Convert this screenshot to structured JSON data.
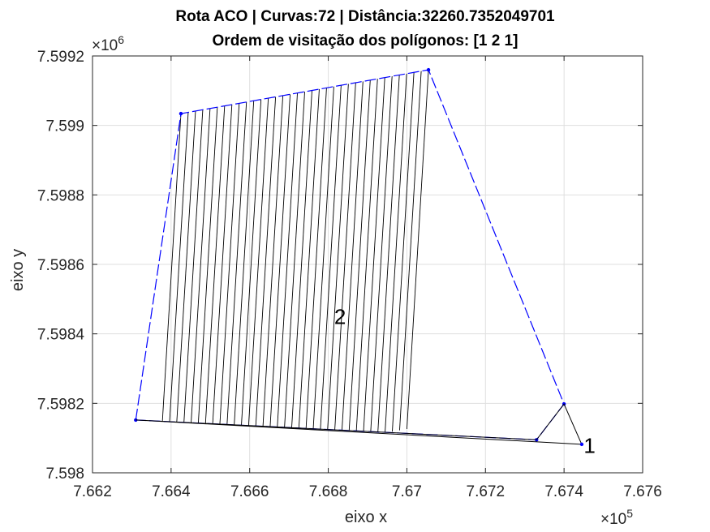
{
  "chart_data": {
    "type": "line",
    "title": [
      "Rota ACO | Curvas:72 | Distância:32260.7352049701",
      "Ordem de visitação dos polígonos: [1 2 1]"
    ],
    "xlabel": "eixo x",
    "ylabel": "eixo y",
    "xlim": [
      766200,
      767600
    ],
    "ylim": [
      7598000,
      7599200
    ],
    "grid": true,
    "x_tick_labels": [
      "7.662",
      "7.664",
      "7.666",
      "7.668",
      "7.67",
      "7.672",
      "7.674",
      "7.676"
    ],
    "y_tick_labels": [
      "7.598",
      "7.5982",
      "7.5984",
      "7.5986",
      "7.5988",
      "7.599",
      "7.5992"
    ],
    "x_exponent": "×10",
    "x_exponent_power": "5",
    "y_exponent": "×10",
    "y_exponent_power": "6",
    "polygon_vertices": {
      "x": [
        766310,
        766425,
        767055,
        767400,
        767330,
        766310
      ],
      "y": [
        7598152,
        7599034,
        7599160,
        7598198,
        7598095,
        7598152
      ]
    },
    "depot": {
      "x": 767445,
      "y": 7598082
    },
    "sweep_lines": {
      "count": 34,
      "dx_top_to_bottom": -50,
      "dy_top_to_bottom": -940
    },
    "annotations": [
      {
        "text": "2",
        "x": 766815,
        "y": 7598450
      },
      {
        "text": "1",
        "x": 767450,
        "y": 7598078
      }
    ],
    "colors": {
      "polygon_boundary": "#0000ff",
      "route": "#000000",
      "grid": "#dfdfdf",
      "axes": "#262626"
    }
  }
}
